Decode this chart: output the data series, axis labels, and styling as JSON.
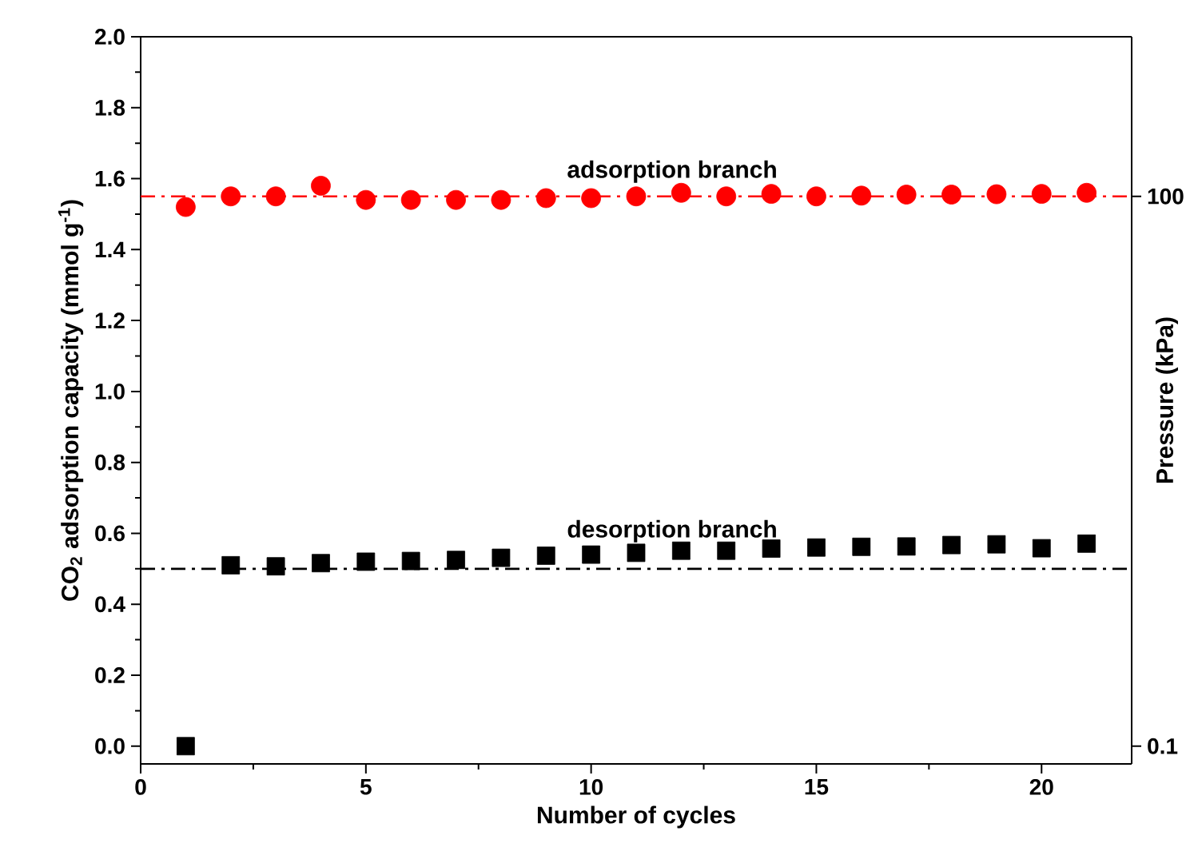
{
  "chart_data": {
    "type": "scatter",
    "xlabel": "Number of cycles",
    "ylabel": "CO$_{2}$ adsorption capacity (mmol g$^{-1}$)",
    "y2label": "Pressure (kPa)",
    "x": [
      1,
      2,
      3,
      4,
      5,
      6,
      7,
      8,
      9,
      10,
      11,
      12,
      13,
      14,
      15,
      16,
      17,
      18,
      19,
      20,
      21
    ],
    "series": [
      {
        "color": "#ff0000",
        "marker": "circle",
        "values": [
          1.52,
          1.55,
          1.55,
          1.58,
          1.54,
          1.54,
          1.54,
          1.54,
          1.545,
          1.545,
          1.55,
          1.56,
          1.55,
          1.557,
          1.55,
          1.552,
          1.555,
          1.555,
          1.556,
          1.557,
          1.56
        ]
      },
      {
        "color": "#000000",
        "marker": "square",
        "values": [
          0.0,
          0.51,
          0.507,
          0.516,
          0.52,
          0.522,
          0.525,
          0.531,
          0.537,
          0.54,
          0.545,
          0.551,
          0.551,
          0.557,
          0.56,
          0.562,
          0.563,
          0.567,
          0.569,
          0.558,
          0.571
        ]
      }
    ],
    "xlim": [
      0,
      22
    ],
    "xticks": [
      0,
      5,
      10,
      15,
      20
    ],
    "ylim": [
      -0.05,
      2.0
    ],
    "yticks": [
      {
        "value": 0,
        "label": "0.0"
      },
      {
        "value": 0.2,
        "label": "0.2"
      },
      {
        "value": 0.4,
        "label": "0.4"
      },
      {
        "value": 0.6,
        "label": "0.6"
      },
      {
        "value": 0.8,
        "label": "0.8"
      },
      {
        "value": 1.0,
        "label": "1.0"
      },
      {
        "value": 1.2,
        "label": "1.2"
      },
      {
        "value": 1.4,
        "label": "1.4"
      },
      {
        "value": 1.6,
        "label": "1.6"
      },
      {
        "value": 1.8,
        "label": "1.8"
      },
      {
        "value": 2.0,
        "label": "2.0"
      }
    ],
    "y2lim": [
      0.08,
      743
    ],
    "y2ticks": [
      0.1,
      100
    ],
    "log": "y2",
    "ref_lines": [
      {
        "axis": "y",
        "value": 1.55,
        "color": "#ff0000",
        "line_style": "dashdot"
      },
      {
        "axis": "y",
        "value": 0.5,
        "color": "#000000",
        "line_style": "dashdot"
      }
    ],
    "annotations": [
      "adsorption branch",
      "desorption branch"
    ]
  }
}
